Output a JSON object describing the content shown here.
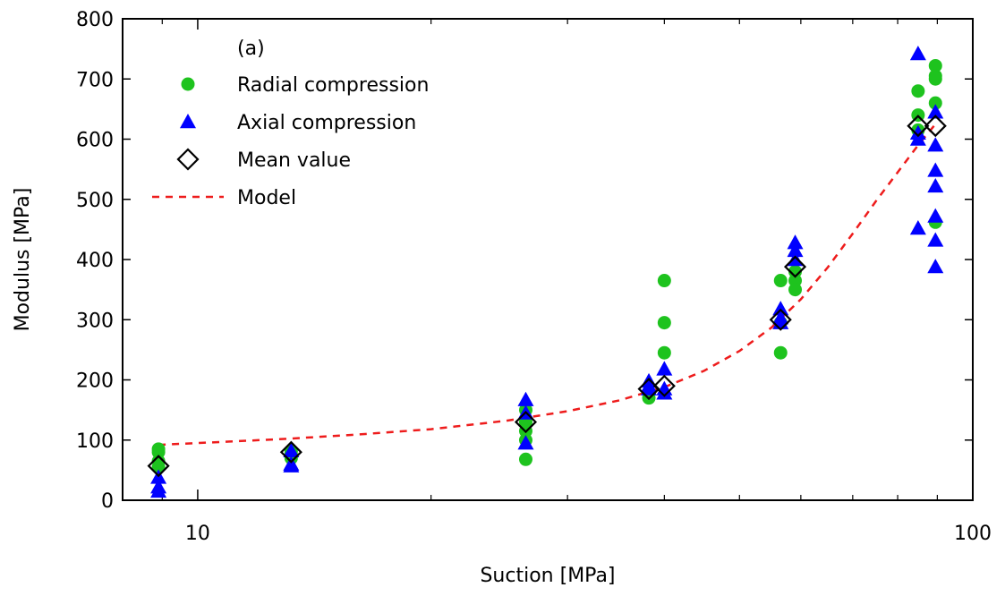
{
  "chart_data": {
    "type": "scatter",
    "panel_label": "(a)",
    "title": "",
    "xlabel": "Suction [MPa]",
    "ylabel": "Modulus [MPa]",
    "xscale": "log",
    "xlim": [
      8,
      100
    ],
    "ylim": [
      0,
      800
    ],
    "x_ticks": [
      10,
      100
    ],
    "y_ticks": [
      0,
      100,
      200,
      300,
      400,
      500,
      600,
      700,
      800
    ],
    "legend_position": "top-left",
    "grid": false,
    "series": [
      {
        "name": "Radial compression",
        "marker": "circle",
        "color": "#1ec31e",
        "points": [
          {
            "x": 8.9,
            "y": 85
          },
          {
            "x": 8.9,
            "y": 80
          },
          {
            "x": 8.9,
            "y": 65
          },
          {
            "x": 8.9,
            "y": 55
          },
          {
            "x": 13.2,
            "y": 82
          },
          {
            "x": 13.2,
            "y": 76
          },
          {
            "x": 13.2,
            "y": 70
          },
          {
            "x": 26.5,
            "y": 150
          },
          {
            "x": 26.5,
            "y": 130
          },
          {
            "x": 26.5,
            "y": 115
          },
          {
            "x": 26.5,
            "y": 100
          },
          {
            "x": 26.5,
            "y": 68
          },
          {
            "x": 38.2,
            "y": 180
          },
          {
            "x": 38.2,
            "y": 170
          },
          {
            "x": 40,
            "y": 365
          },
          {
            "x": 40,
            "y": 295
          },
          {
            "x": 40,
            "y": 245
          },
          {
            "x": 56.5,
            "y": 365
          },
          {
            "x": 56.5,
            "y": 295
          },
          {
            "x": 56.5,
            "y": 245
          },
          {
            "x": 59,
            "y": 380
          },
          {
            "x": 59,
            "y": 365
          },
          {
            "x": 59,
            "y": 350
          },
          {
            "x": 85,
            "y": 680
          },
          {
            "x": 85,
            "y": 640
          },
          {
            "x": 85,
            "y": 615
          },
          {
            "x": 89.5,
            "y": 722
          },
          {
            "x": 89.5,
            "y": 705
          },
          {
            "x": 89.5,
            "y": 700
          },
          {
            "x": 89.5,
            "y": 660
          },
          {
            "x": 89.5,
            "y": 462
          }
        ]
      },
      {
        "name": "Axial compression",
        "marker": "triangle",
        "color": "#0000ff",
        "points": [
          {
            "x": 8.9,
            "y": 38
          },
          {
            "x": 8.9,
            "y": 22
          },
          {
            "x": 8.9,
            "y": 15
          },
          {
            "x": 13.2,
            "y": 82
          },
          {
            "x": 13.2,
            "y": 60
          },
          {
            "x": 13.2,
            "y": 57
          },
          {
            "x": 26.5,
            "y": 167
          },
          {
            "x": 26.5,
            "y": 145
          },
          {
            "x": 26.5,
            "y": 95
          },
          {
            "x": 38.2,
            "y": 198
          },
          {
            "x": 38.2,
            "y": 190
          },
          {
            "x": 38.2,
            "y": 185
          },
          {
            "x": 40,
            "y": 218
          },
          {
            "x": 40,
            "y": 185
          },
          {
            "x": 40,
            "y": 178
          },
          {
            "x": 56.5,
            "y": 318
          },
          {
            "x": 56.5,
            "y": 303
          },
          {
            "x": 56.5,
            "y": 295
          },
          {
            "x": 59,
            "y": 428
          },
          {
            "x": 59,
            "y": 415
          },
          {
            "x": 59,
            "y": 400
          },
          {
            "x": 85,
            "y": 742
          },
          {
            "x": 85,
            "y": 610
          },
          {
            "x": 85,
            "y": 600
          },
          {
            "x": 85,
            "y": 452
          },
          {
            "x": 89.5,
            "y": 645
          },
          {
            "x": 89.5,
            "y": 590
          },
          {
            "x": 89.5,
            "y": 548
          },
          {
            "x": 89.5,
            "y": 522
          },
          {
            "x": 89.5,
            "y": 472
          },
          {
            "x": 89.5,
            "y": 432
          },
          {
            "x": 89.5,
            "y": 388
          }
        ]
      },
      {
        "name": "Mean value",
        "marker": "diamond",
        "color": "#000000",
        "points": [
          {
            "x": 8.9,
            "y": 57
          },
          {
            "x": 13.2,
            "y": 80
          },
          {
            "x": 26.5,
            "y": 130
          },
          {
            "x": 38.2,
            "y": 185
          },
          {
            "x": 40,
            "y": 190
          },
          {
            "x": 56.5,
            "y": 300
          },
          {
            "x": 59,
            "y": 388
          },
          {
            "x": 85,
            "y": 622
          },
          {
            "x": 89.5,
            "y": 622
          }
        ]
      },
      {
        "name": "Model",
        "marker": "dashed-line",
        "color": "#ee1c1c",
        "points": [
          {
            "x": 8.9,
            "y": 92
          },
          {
            "x": 10,
            "y": 95
          },
          {
            "x": 13,
            "y": 102
          },
          {
            "x": 16,
            "y": 109
          },
          {
            "x": 20,
            "y": 118
          },
          {
            "x": 25,
            "y": 132
          },
          {
            "x": 30,
            "y": 148
          },
          {
            "x": 35,
            "y": 166
          },
          {
            "x": 40,
            "y": 188
          },
          {
            "x": 45,
            "y": 215
          },
          {
            "x": 50,
            "y": 248
          },
          {
            "x": 55,
            "y": 287
          },
          {
            "x": 60,
            "y": 334
          },
          {
            "x": 65,
            "y": 387
          },
          {
            "x": 70,
            "y": 443
          },
          {
            "x": 75,
            "y": 497
          },
          {
            "x": 80,
            "y": 545
          },
          {
            "x": 85,
            "y": 590
          },
          {
            "x": 89.5,
            "y": 625
          }
        ]
      }
    ]
  }
}
